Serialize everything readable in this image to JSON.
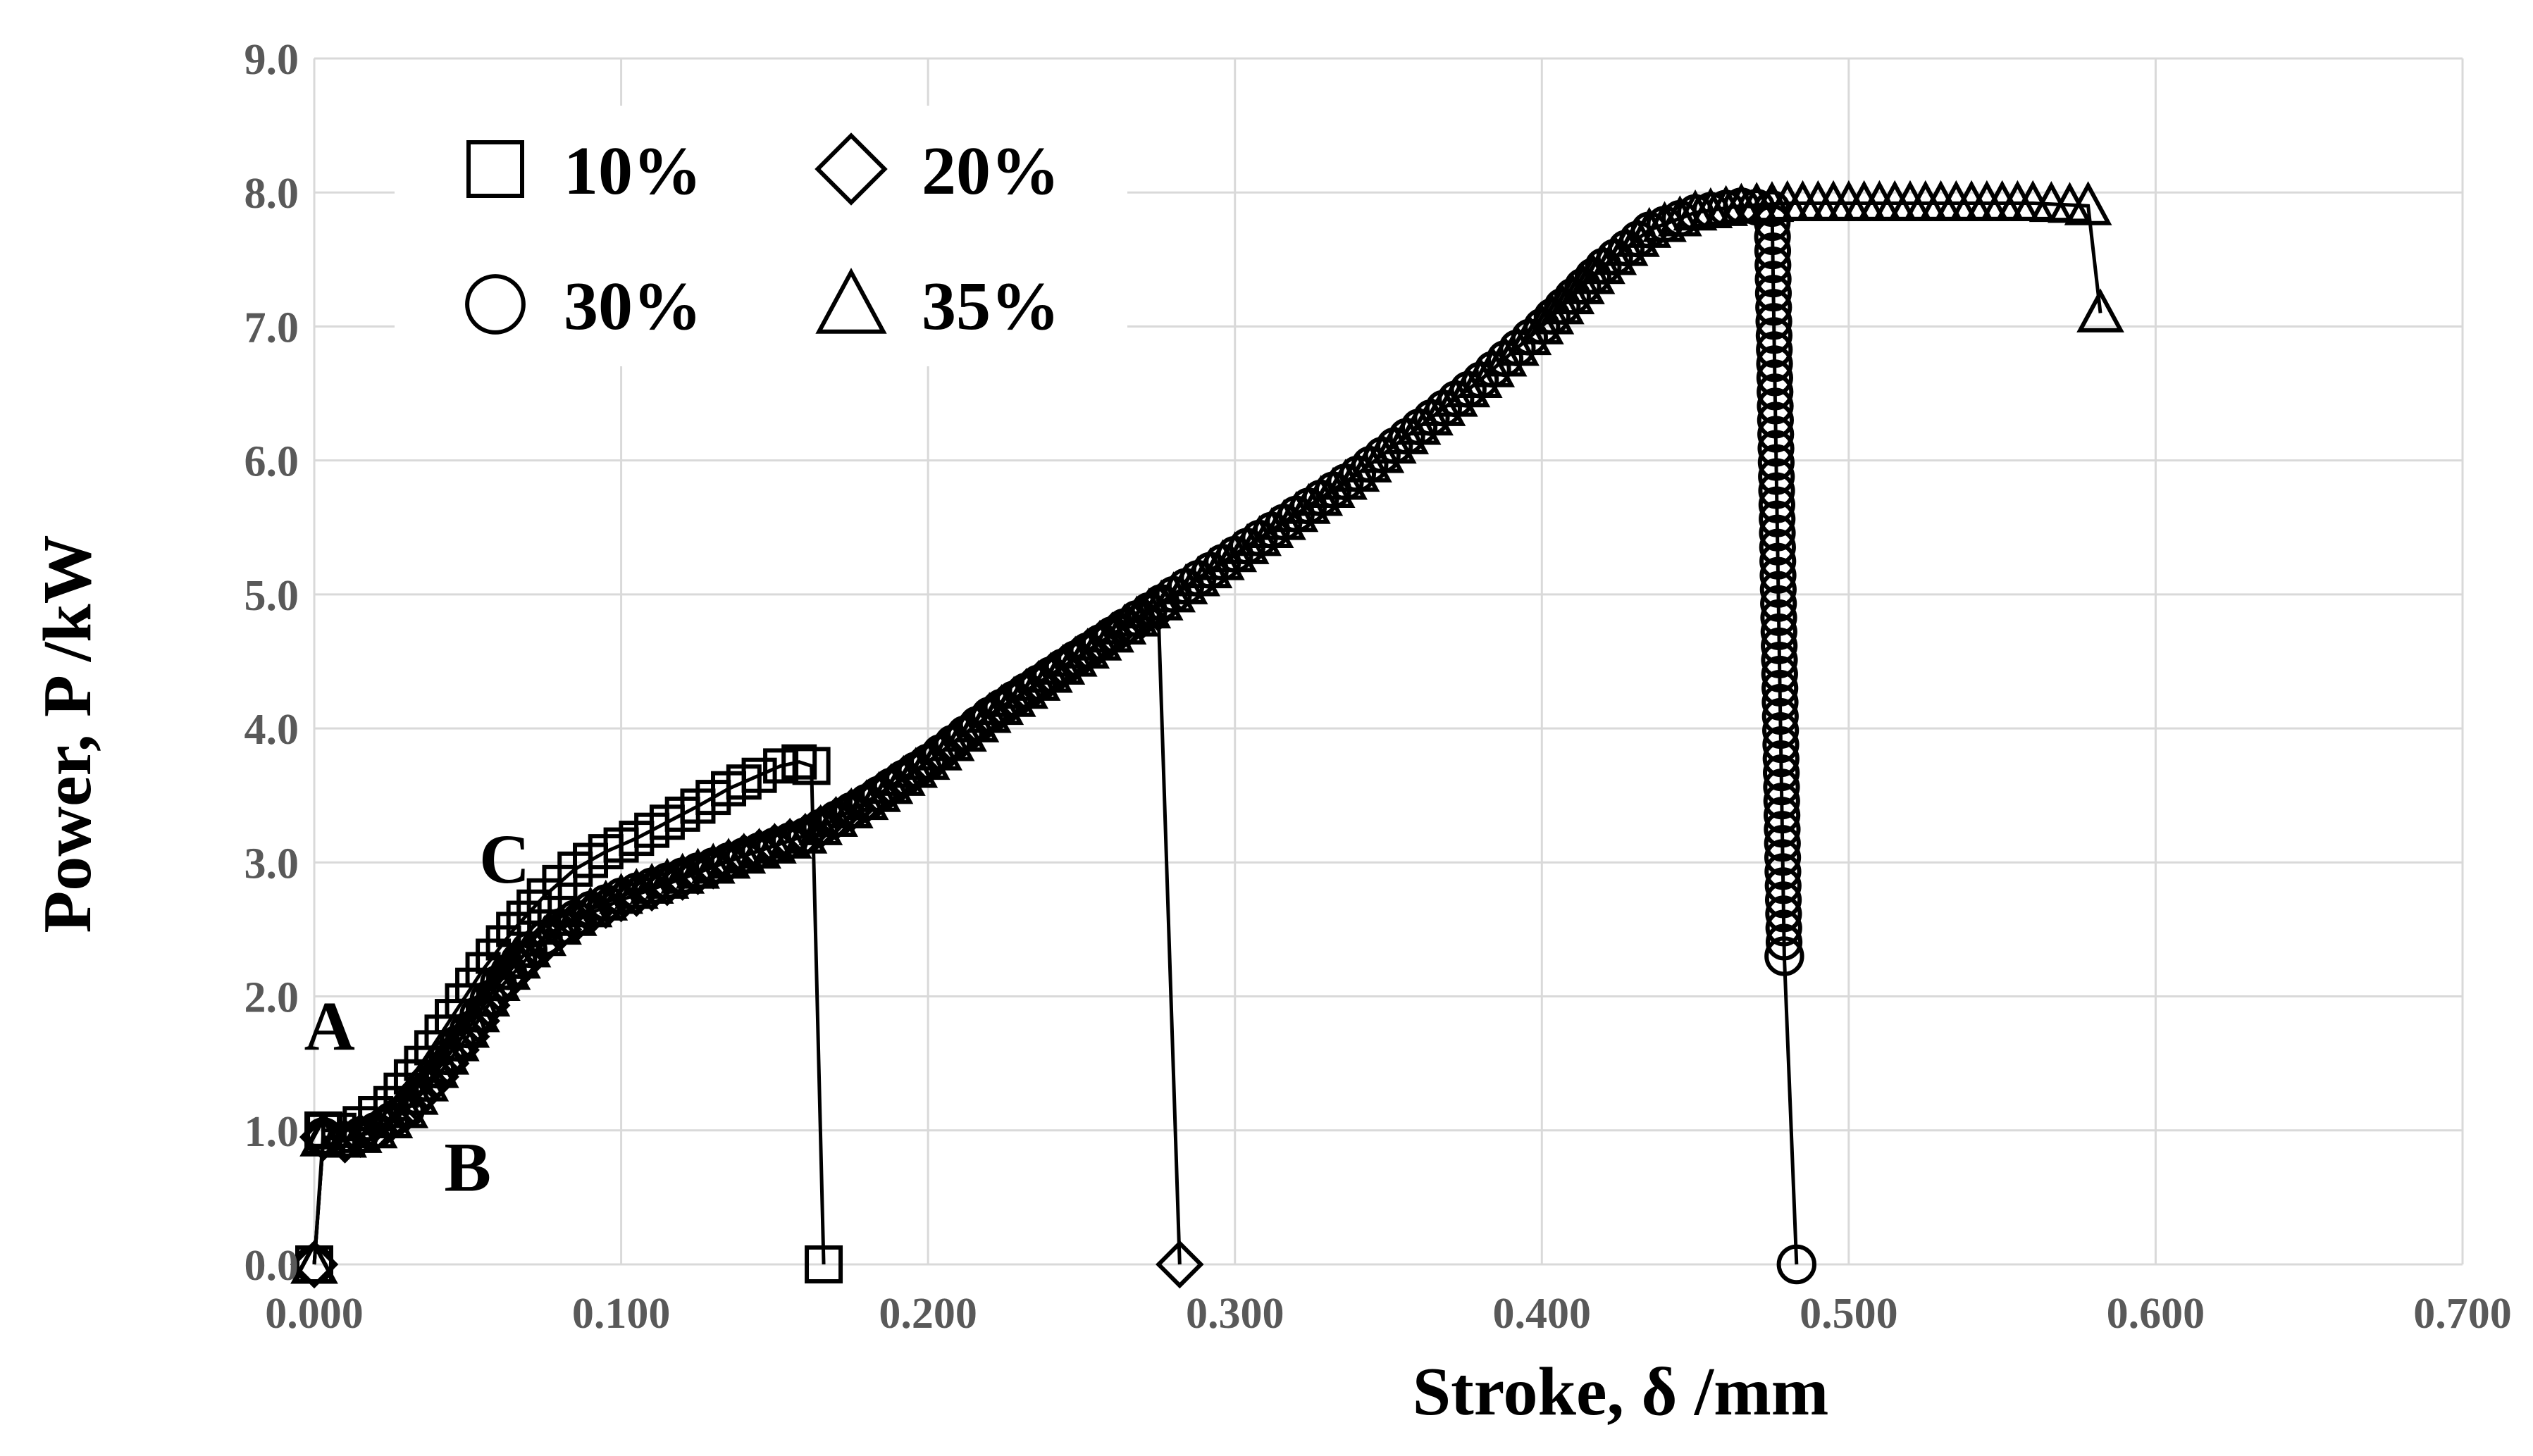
{
  "chart_data": {
    "type": "line",
    "title": "",
    "xlabel": "Stroke, δ /mm",
    "ylabel": "Power, P /kW",
    "xlim": [
      0.0,
      0.7
    ],
    "ylim": [
      0.0,
      9.0
    ],
    "grid": true,
    "legend_position": "top-left",
    "x_ticks": [
      0.0,
      0.1,
      0.2,
      0.3,
      0.4,
      0.5,
      0.6,
      0.7
    ],
    "x_tick_labels": [
      "0.000",
      "0.100",
      "0.200",
      "0.300",
      "0.400",
      "0.500",
      "0.600",
      "0.700"
    ],
    "y_ticks": [
      0.0,
      1.0,
      2.0,
      3.0,
      4.0,
      5.0,
      6.0,
      7.0,
      8.0,
      9.0
    ],
    "y_tick_labels": [
      "0.0",
      "1.0",
      "2.0",
      "3.0",
      "4.0",
      "5.0",
      "6.0",
      "7.0",
      "8.0",
      "9.0"
    ],
    "legend": [
      {
        "label": "10%",
        "marker": "square"
      },
      {
        "label": "20%",
        "marker": "diamond"
      },
      {
        "label": "30%",
        "marker": "circle"
      },
      {
        "label": "35%",
        "marker": "triangle"
      }
    ],
    "series": [
      {
        "name": "10%",
        "marker": "square",
        "x": [
          0.0,
          0.003,
          0.008,
          0.015,
          0.025,
          0.035,
          0.045,
          0.055,
          0.065,
          0.075,
          0.085,
          0.095,
          0.105,
          0.115,
          0.125,
          0.135,
          0.145,
          0.152,
          0.158,
          0.162,
          0.166
        ],
        "y": [
          0.0,
          1.0,
          1.0,
          1.05,
          1.2,
          1.5,
          1.85,
          2.2,
          2.5,
          2.75,
          2.95,
          3.08,
          3.18,
          3.3,
          3.42,
          3.55,
          3.65,
          3.72,
          3.75,
          3.72,
          0.0
        ]
      },
      {
        "name": "20%",
        "marker": "diamond",
        "x": [
          0.0,
          0.003,
          0.01,
          0.02,
          0.03,
          0.04,
          0.05,
          0.06,
          0.07,
          0.08,
          0.09,
          0.1,
          0.12,
          0.14,
          0.16,
          0.18,
          0.2,
          0.22,
          0.24,
          0.26,
          0.275,
          0.282
        ],
        "y": [
          0.0,
          0.95,
          0.92,
          1.0,
          1.15,
          1.4,
          1.7,
          2.05,
          2.3,
          2.5,
          2.62,
          2.72,
          2.88,
          3.05,
          3.2,
          3.45,
          3.75,
          4.1,
          4.4,
          4.7,
          4.9,
          0.0
        ]
      },
      {
        "name": "30%",
        "marker": "circle",
        "x": [
          0.0,
          0.003,
          0.01,
          0.02,
          0.03,
          0.04,
          0.05,
          0.06,
          0.07,
          0.08,
          0.09,
          0.1,
          0.12,
          0.14,
          0.16,
          0.18,
          0.2,
          0.22,
          0.24,
          0.26,
          0.28,
          0.3,
          0.32,
          0.34,
          0.36,
          0.38,
          0.4,
          0.42,
          0.435,
          0.45,
          0.465,
          0.475,
          0.479,
          0.483
        ],
        "y": [
          0.0,
          0.95,
          0.93,
          1.0,
          1.15,
          1.45,
          1.75,
          2.1,
          2.35,
          2.52,
          2.65,
          2.75,
          2.9,
          3.05,
          3.2,
          3.45,
          3.75,
          4.1,
          4.4,
          4.7,
          5.0,
          5.3,
          5.6,
          5.9,
          6.25,
          6.6,
          7.0,
          7.45,
          7.72,
          7.85,
          7.9,
          7.88,
          2.3,
          0.0
        ]
      },
      {
        "name": "35%",
        "marker": "triangle",
        "x": [
          0.0,
          0.003,
          0.01,
          0.02,
          0.03,
          0.04,
          0.05,
          0.06,
          0.07,
          0.08,
          0.09,
          0.1,
          0.12,
          0.14,
          0.16,
          0.18,
          0.2,
          0.22,
          0.24,
          0.26,
          0.28,
          0.3,
          0.32,
          0.34,
          0.36,
          0.38,
          0.4,
          0.42,
          0.435,
          0.45,
          0.465,
          0.48,
          0.5,
          0.52,
          0.54,
          0.56,
          0.578,
          0.582
        ],
        "y": [
          0.0,
          0.95,
          0.93,
          1.0,
          1.15,
          1.45,
          1.75,
          2.1,
          2.35,
          2.52,
          2.65,
          2.75,
          2.9,
          3.05,
          3.2,
          3.45,
          3.75,
          4.1,
          4.4,
          4.7,
          5.0,
          5.3,
          5.6,
          5.9,
          6.25,
          6.6,
          7.0,
          7.45,
          7.72,
          7.85,
          7.9,
          7.92,
          7.92,
          7.92,
          7.92,
          7.92,
          7.9,
          7.1
        ]
      }
    ],
    "annotations": [
      {
        "text": "A",
        "x": 0.005,
        "y": 1.6
      },
      {
        "text": "B",
        "x": 0.05,
        "y": 0.55
      },
      {
        "text": "C",
        "x": 0.062,
        "y": 2.85
      }
    ]
  }
}
